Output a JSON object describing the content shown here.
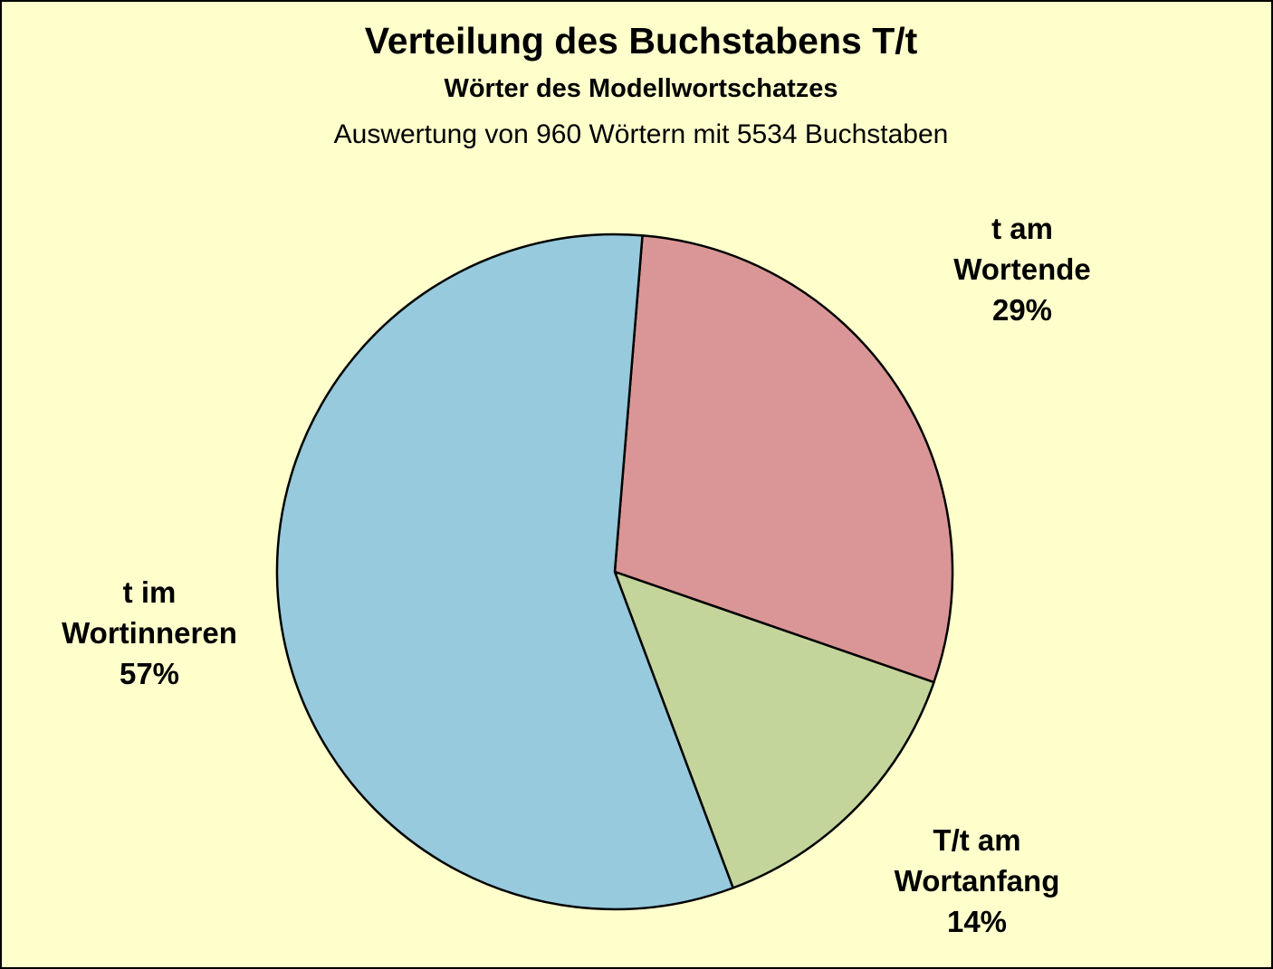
{
  "chart_data": {
    "type": "pie",
    "title": "Verteilung des Buchstabens T/t",
    "subtitle": "Wörter des Modellwortschatzes",
    "note": "Auswertung von 960 Wörtern mit 5534 Buchstaben",
    "slices": [
      {
        "line1": "t am",
        "line2": "Wortende",
        "percent_label": "29%",
        "value": 29,
        "color": "#DA9696"
      },
      {
        "line1": "T/t am",
        "line2": "Wortanfang",
        "percent_label": "14%",
        "value": 14,
        "color": "#C4D59C"
      },
      {
        "line1": "t im",
        "line2": "Wortinneren",
        "percent_label": "57%",
        "value": 57,
        "color": "#96CADC"
      }
    ],
    "start_angle_deg": 4.7,
    "direction": "clockwise",
    "legend": "none"
  },
  "colors": {
    "background": "#FFFFCC",
    "outline": "#000000"
  }
}
